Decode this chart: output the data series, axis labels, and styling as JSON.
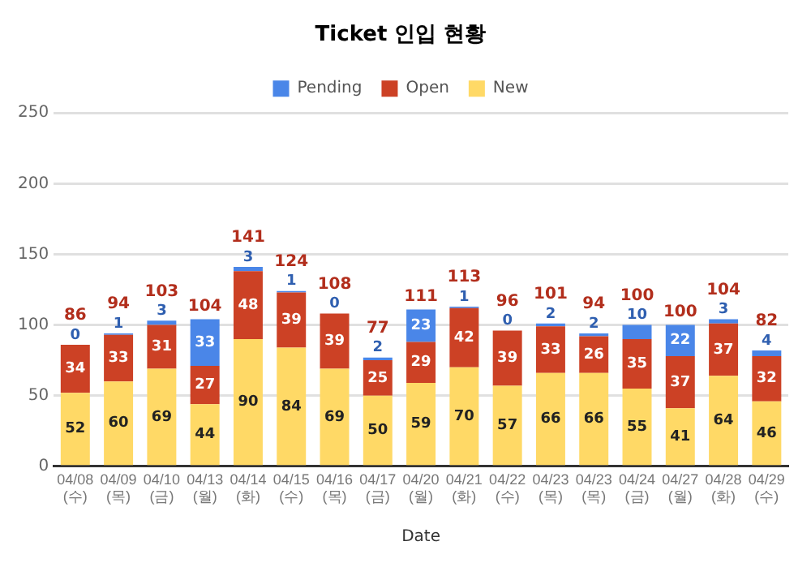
{
  "chart_data": {
    "type": "bar",
    "title": "Ticket 인입 현황",
    "xlabel": "Date",
    "stacked": true,
    "categories": [
      "04/08\n(수)",
      "04/09\n(목)",
      "04/10\n(금)",
      "04/13\n(월)",
      "04/14\n(화)",
      "04/15\n(수)",
      "04/16\n(목)",
      "04/17\n(금)",
      "04/20\n(월)",
      "04/21\n(화)",
      "04/22\n(수)",
      "04/23\n(목)",
      "04/23\n(목)",
      "04/24\n(금)",
      "04/27\n(월)",
      "04/28\n(화)",
      "04/29\n(수)"
    ],
    "series": [
      {
        "name": "New",
        "color": "#ffd966",
        "values": [
          52,
          60,
          69,
          44,
          90,
          84,
          69,
          50,
          59,
          70,
          57,
          66,
          66,
          55,
          41,
          64,
          46
        ]
      },
      {
        "name": "Open",
        "color": "#cc4125",
        "values": [
          34,
          33,
          31,
          27,
          48,
          39,
          39,
          25,
          29,
          42,
          39,
          33,
          26,
          35,
          37,
          37,
          32
        ]
      },
      {
        "name": "Pending",
        "color": "#4a86e8",
        "values": [
          0,
          1,
          3,
          33,
          3,
          1,
          0,
          2,
          23,
          1,
          0,
          2,
          2,
          10,
          22,
          3,
          4
        ]
      }
    ],
    "totals": [
      "86",
      "94",
      "103",
      "104",
      "141",
      "124",
      "108",
      "77",
      "111",
      "113",
      "96",
      "101",
      "94",
      "100",
      "100",
      "104",
      "82"
    ],
    "data_labels": true,
    "ylim": [
      0,
      250
    ],
    "yticks": [
      0,
      50,
      100,
      150,
      200,
      250
    ],
    "grid": "y",
    "legend": "top"
  }
}
